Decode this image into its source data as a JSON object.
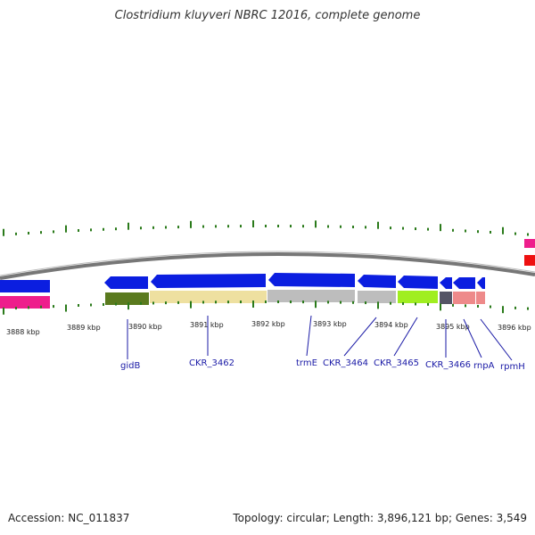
{
  "title": "Clostridium kluyveri NBRC 12016, complete genome",
  "footer": {
    "accession": "Accession: NC_011837",
    "summary": "Topology: circular; Length: 3,896,121 bp; Genes: 3,549"
  },
  "colors": {
    "backbone": "#888888",
    "tick": "#2a7a1a",
    "cds_blue": "#0b1ee0",
    "pink": "#ee1e8c",
    "red": "#ee1010",
    "label_blue": "#1a1aa6"
  },
  "scale_labels": [
    "3888 kbp",
    "3889 kbp",
    "3890 kbp",
    "3891 kbp",
    "3892 kbp",
    "3893 kbp",
    "3894 kbp",
    "3895 kbp",
    "3896 kbp"
  ],
  "genes": [
    "gidB",
    "CKR_3462",
    "trmE",
    "CKR_3464",
    "CKR_3465",
    "CKR_3466",
    "rnpA",
    "rpmH"
  ]
}
